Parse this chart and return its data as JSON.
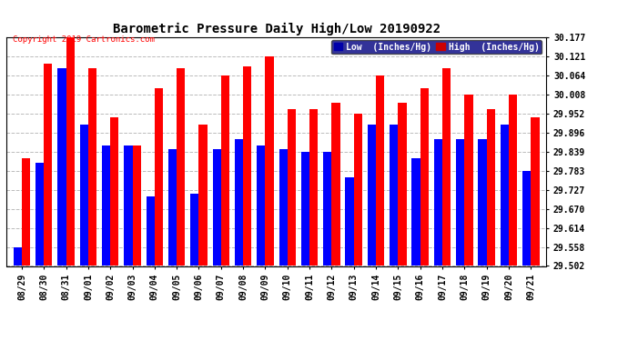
{
  "title": "Barometric Pressure Daily High/Low 20190922",
  "copyright": "Copyright 2019 Cartronics.com",
  "legend_low": "Low  (Inches/Hg)",
  "legend_high": "High  (Inches/Hg)",
  "low_color": "#0000ff",
  "high_color": "#ff0000",
  "legend_low_bg": "#0000aa",
  "legend_high_bg": "#cc0000",
  "bg_color": "#ffffff",
  "ylim_min": 29.502,
  "ylim_max": 30.177,
  "yticks": [
    29.502,
    29.558,
    29.614,
    29.67,
    29.727,
    29.783,
    29.839,
    29.896,
    29.952,
    30.008,
    30.064,
    30.121,
    30.177
  ],
  "categories": [
    "08/29",
    "08/30",
    "08/31",
    "09/01",
    "09/02",
    "09/03",
    "09/04",
    "09/05",
    "09/06",
    "09/07",
    "09/08",
    "09/09",
    "09/10",
    "09/11",
    "09/12",
    "09/13",
    "09/14",
    "09/15",
    "09/16",
    "09/17",
    "09/18",
    "09/19",
    "09/20",
    "09/21"
  ],
  "low_values": [
    29.558,
    29.808,
    30.086,
    29.921,
    29.858,
    29.858,
    29.708,
    29.848,
    29.716,
    29.848,
    29.878,
    29.858,
    29.848,
    29.84,
    29.84,
    29.763,
    29.921,
    29.921,
    29.82,
    29.878,
    29.878,
    29.878,
    29.921,
    29.783
  ],
  "high_values": [
    29.821,
    30.1,
    30.177,
    30.086,
    29.94,
    29.858,
    30.027,
    30.086,
    29.921,
    30.064,
    30.092,
    30.121,
    29.965,
    29.965,
    29.984,
    29.952,
    30.064,
    29.984,
    30.027,
    30.086,
    30.008,
    29.965,
    30.008,
    29.94
  ],
  "bar_width": 0.38,
  "title_fontsize": 10,
  "tick_fontsize": 7,
  "grid_color": "#bbbbbb",
  "grid_linestyle": "--",
  "grid_linewidth": 0.7
}
